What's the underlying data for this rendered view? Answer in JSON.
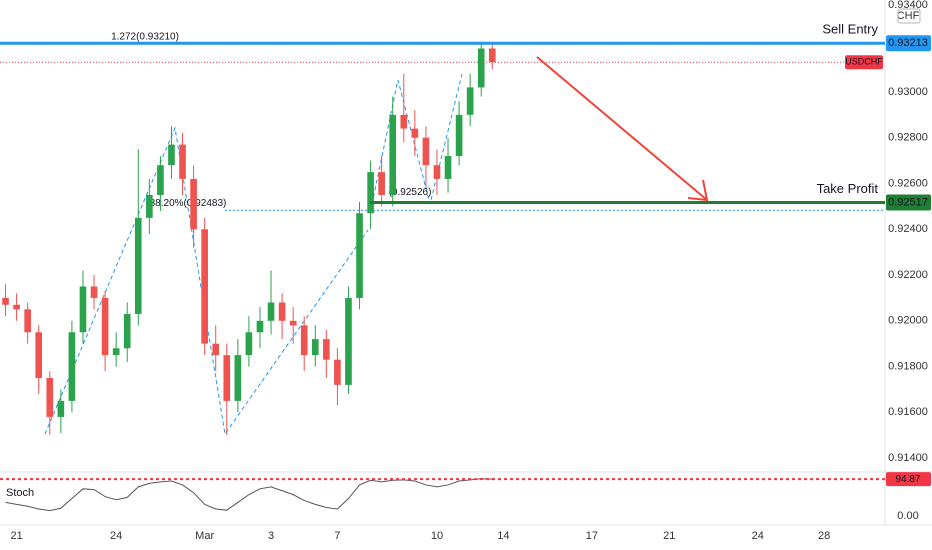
{
  "chart_data": {
    "type": "candlestick",
    "symbol": "USDCHF",
    "currency": "CHF",
    "x": [
      0,
      1,
      2,
      3,
      4,
      5,
      6,
      7,
      8,
      9,
      10,
      11,
      12,
      13,
      14,
      15,
      16,
      17,
      18,
      19,
      20,
      21,
      22,
      23,
      24,
      25,
      26,
      27,
      28,
      29,
      30,
      31,
      32,
      33,
      34,
      35,
      36,
      37,
      38,
      39,
      40,
      41,
      42,
      43,
      44
    ],
    "open": [
      0.921,
      0.9207,
      0.9205,
      0.9195,
      0.9175,
      0.9158,
      0.9165,
      0.9195,
      0.9215,
      0.921,
      0.9185,
      0.9188,
      0.9203,
      0.9245,
      0.9255,
      0.9268,
      0.9277,
      0.9262,
      0.924,
      0.919,
      0.9185,
      0.9165,
      0.9185,
      0.9195,
      0.92,
      0.9208,
      0.92,
      0.9198,
      0.9185,
      0.9192,
      0.9183,
      0.9172,
      0.921,
      0.9247,
      0.9265,
      0.9255,
      0.929,
      0.9284,
      0.928,
      0.9268,
      0.9262,
      0.9272,
      0.929,
      0.9302,
      0.9319
    ],
    "high": [
      0.9216,
      0.9212,
      0.9208,
      0.9198,
      0.9178,
      0.917,
      0.92,
      0.9222,
      0.922,
      0.9213,
      0.9195,
      0.9208,
      0.9275,
      0.9262,
      0.9272,
      0.9285,
      0.9282,
      0.9268,
      0.9245,
      0.9198,
      0.919,
      0.9192,
      0.9202,
      0.9206,
      0.9222,
      0.9212,
      0.9206,
      0.9202,
      0.9198,
      0.9196,
      0.9188,
      0.9215,
      0.9252,
      0.927,
      0.9272,
      0.9298,
      0.9308,
      0.9292,
      0.9285,
      0.9275,
      0.928,
      0.9296,
      0.9308,
      0.9321,
      0.9322
    ],
    "low": [
      0.9202,
      0.92,
      0.919,
      0.9168,
      0.915,
      0.9151,
      0.916,
      0.919,
      0.9205,
      0.9178,
      0.918,
      0.9182,
      0.9198,
      0.9238,
      0.9248,
      0.9262,
      0.9255,
      0.9232,
      0.9185,
      0.9178,
      0.915,
      0.916,
      0.918,
      0.9188,
      0.9194,
      0.9192,
      0.919,
      0.9178,
      0.918,
      0.9175,
      0.9163,
      0.9168,
      0.9205,
      0.924,
      0.925,
      0.925,
      0.9278,
      0.9272,
      0.9258,
      0.9255,
      0.9256,
      0.9268,
      0.9285,
      0.9298,
      0.931
    ],
    "close": [
      0.9207,
      0.9205,
      0.9195,
      0.9175,
      0.9158,
      0.9165,
      0.9195,
      0.9215,
      0.921,
      0.9185,
      0.9188,
      0.9203,
      0.9245,
      0.9255,
      0.9268,
      0.9277,
      0.9262,
      0.924,
      0.919,
      0.9185,
      0.9165,
      0.9185,
      0.9195,
      0.92,
      0.9208,
      0.92,
      0.9198,
      0.9185,
      0.9192,
      0.9183,
      0.9172,
      0.921,
      0.9247,
      0.9265,
      0.9255,
      0.929,
      0.9284,
      0.928,
      0.9268,
      0.9262,
      0.9272,
      0.929,
      0.9302,
      0.9319,
      0.9313
    ],
    "up_color": "#2ba24c",
    "down_color": "#ef5350",
    "xlim": [
      -0.5,
      79.5
    ],
    "xticks": [
      {
        "value": 1,
        "label": "21"
      },
      {
        "value": 10,
        "label": "24"
      },
      {
        "value": 18,
        "label": "Mar"
      },
      {
        "value": 24,
        "label": "3"
      },
      {
        "value": 30,
        "label": "7"
      },
      {
        "value": 39,
        "label": "10"
      },
      {
        "value": 45,
        "label": "14"
      },
      {
        "value": 53,
        "label": "17"
      },
      {
        "value": 60,
        "label": "21"
      },
      {
        "value": 68,
        "label": "24"
      },
      {
        "value": 74,
        "label": "28"
      }
    ],
    "ylim": [
      0.91348,
      0.93402
    ],
    "yticks": [
      {
        "value": 0.914,
        "label": "0.91400"
      },
      {
        "value": 0.916,
        "label": "0.91600"
      },
      {
        "value": 0.918,
        "label": "0.91800"
      },
      {
        "value": 0.92,
        "label": "0.92000"
      },
      {
        "value": 0.922,
        "label": "0.92200"
      },
      {
        "value": 0.924,
        "label": "0.92400"
      },
      {
        "value": 0.926,
        "label": "0.92600"
      },
      {
        "value": 0.928,
        "label": "0.92800"
      },
      {
        "value": 0.93,
        "label": "0.93000"
      },
      {
        "value": 0.934,
        "label": "0.93400"
      }
    ],
    "grid": false,
    "current_price": {
      "value": 0.9313,
      "color": "#f23645"
    },
    "lines": [
      {
        "name": "Sell Entry",
        "value": 0.93213,
        "color": "#2196f3"
      },
      {
        "name": "Take Profit",
        "value": 0.92517,
        "color": "#1e7e34"
      }
    ],
    "fib_levels": [
      {
        "label": "1.272(0.93210)",
        "value": 0.9321
      },
      {
        "label": "38.20%(0.92483)",
        "value": 0.92483
      }
    ],
    "annotations": [
      {
        "label": "(0.92526)",
        "value": 0.92526
      }
    ],
    "stoch": {
      "name": "Stoch",
      "color": "#555555",
      "values": [
        35,
        30,
        25,
        18,
        14,
        20,
        45,
        70,
        68,
        50,
        42,
        48,
        75,
        84,
        88,
        90,
        80,
        60,
        30,
        18,
        15,
        35,
        55,
        70,
        75,
        65,
        55,
        40,
        30,
        22,
        18,
        45,
        80,
        92,
        88,
        92,
        93,
        90,
        80,
        75,
        80,
        90,
        93,
        96,
        94.87
      ],
      "ylim": [
        -18,
        103
      ],
      "yticks": [
        {
          "value": 0,
          "label": "0.00"
        }
      ],
      "level_color": "#f23645"
    }
  }
}
